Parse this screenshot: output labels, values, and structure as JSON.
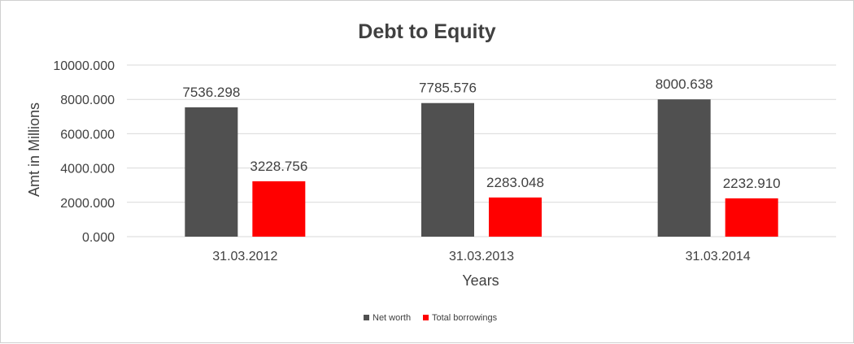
{
  "chart_data": {
    "type": "bar",
    "title": "Debt to Equity",
    "xlabel": "Years",
    "ylabel": "Amt in Millions",
    "categories": [
      "31.03.2012",
      "31.03.2013",
      "31.03.2014"
    ],
    "series": [
      {
        "name": "Net worth",
        "color": "#505050",
        "values": [
          7536.298,
          7785.576,
          8000.638
        ],
        "labels": [
          "7536.298",
          "7785.576",
          "8000.638"
        ]
      },
      {
        "name": "Total borrowings",
        "color": "#ff0000",
        "values": [
          3228.756,
          2283.048,
          2232.91
        ],
        "labels": [
          "3228.756",
          "2283.048",
          "2232.910"
        ]
      }
    ],
    "ylim": [
      0,
      10000
    ],
    "yticks": [
      0,
      2000,
      4000,
      6000,
      8000,
      10000
    ],
    "ytick_labels": [
      "0.000",
      "2000.000",
      "4000.000",
      "6000.000",
      "8000.000",
      "10000.000"
    ],
    "grid": true,
    "legend": "bottom"
  }
}
